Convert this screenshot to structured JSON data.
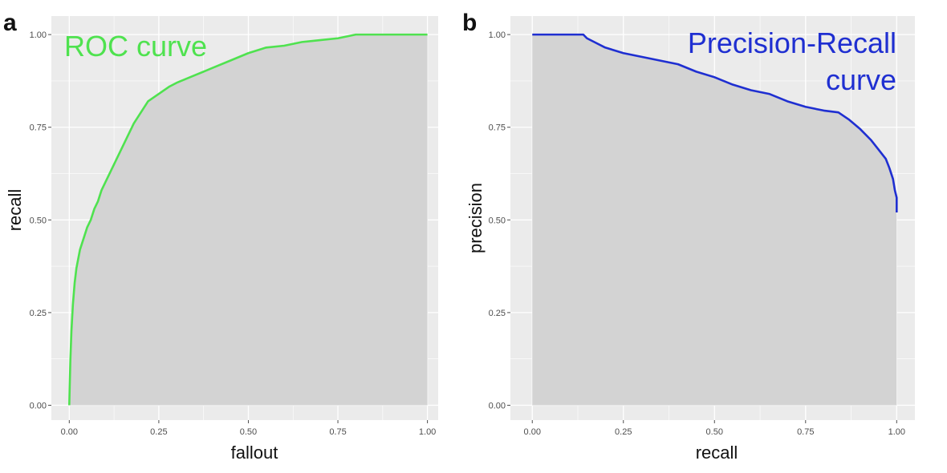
{
  "colors": {
    "panel_bg": "#ebebeb",
    "grid_major": "#ffffff",
    "area_fill": "#d3d3d3",
    "roc_line": "#4fe24f",
    "pr_line": "#1f2fd1",
    "tick_color": "#4d4d4d"
  },
  "chart_data": [
    {
      "type": "area",
      "panel_label": "a",
      "annotation": "ROC curve",
      "annotation_color": "#4fe24f",
      "annotation_position": "top-left",
      "xlabel": "fallout",
      "ylabel": "recall",
      "xlim": [
        0,
        1
      ],
      "ylim": [
        0,
        1
      ],
      "xticks": [
        "0.00",
        "0.25",
        "0.50",
        "0.75",
        "1.00"
      ],
      "yticks": [
        "0.00",
        "0.25",
        "0.50",
        "0.75",
        "1.00"
      ],
      "grid": true,
      "series": [
        {
          "color": "#4fe24f",
          "x": [
            0.0,
            0.003,
            0.006,
            0.01,
            0.015,
            0.02,
            0.03,
            0.04,
            0.05,
            0.06,
            0.07,
            0.08,
            0.09,
            0.1,
            0.11,
            0.12,
            0.13,
            0.14,
            0.15,
            0.16,
            0.17,
            0.18,
            0.2,
            0.22,
            0.25,
            0.28,
            0.3,
            0.35,
            0.4,
            0.45,
            0.5,
            0.55,
            0.6,
            0.65,
            0.7,
            0.75,
            0.8,
            0.85,
            0.9,
            1.0
          ],
          "y": [
            0.0,
            0.12,
            0.2,
            0.27,
            0.33,
            0.37,
            0.42,
            0.45,
            0.48,
            0.5,
            0.53,
            0.55,
            0.58,
            0.6,
            0.62,
            0.64,
            0.66,
            0.68,
            0.7,
            0.72,
            0.74,
            0.76,
            0.79,
            0.82,
            0.84,
            0.86,
            0.87,
            0.89,
            0.91,
            0.93,
            0.95,
            0.965,
            0.97,
            0.98,
            0.985,
            0.99,
            1.0,
            1.0,
            1.0,
            1.0
          ]
        }
      ]
    },
    {
      "type": "area",
      "panel_label": "b",
      "annotation": [
        "Precision-Recall",
        "curve"
      ],
      "annotation_color": "#1f2fd1",
      "annotation_position": "top-right",
      "xlabel": "recall",
      "ylabel": "precision",
      "xlim": [
        0,
        1
      ],
      "ylim": [
        0,
        1
      ],
      "xticks": [
        "0.00",
        "0.25",
        "0.50",
        "0.75",
        "1.00"
      ],
      "yticks": [
        "0.00",
        "0.25",
        "0.50",
        "0.75",
        "1.00"
      ],
      "grid": true,
      "series": [
        {
          "color": "#1f2fd1",
          "x": [
            0.0,
            0.05,
            0.1,
            0.14,
            0.15,
            0.17,
            0.2,
            0.25,
            0.3,
            0.35,
            0.4,
            0.45,
            0.5,
            0.55,
            0.6,
            0.65,
            0.7,
            0.75,
            0.8,
            0.84,
            0.87,
            0.9,
            0.93,
            0.95,
            0.97,
            0.98,
            0.99,
            0.995,
            1.0,
            1.0
          ],
          "y": [
            1.0,
            1.0,
            1.0,
            1.0,
            0.99,
            0.98,
            0.965,
            0.95,
            0.94,
            0.93,
            0.92,
            0.9,
            0.885,
            0.865,
            0.85,
            0.84,
            0.82,
            0.805,
            0.795,
            0.79,
            0.77,
            0.745,
            0.715,
            0.69,
            0.665,
            0.64,
            0.61,
            0.58,
            0.56,
            0.52
          ]
        }
      ]
    }
  ]
}
